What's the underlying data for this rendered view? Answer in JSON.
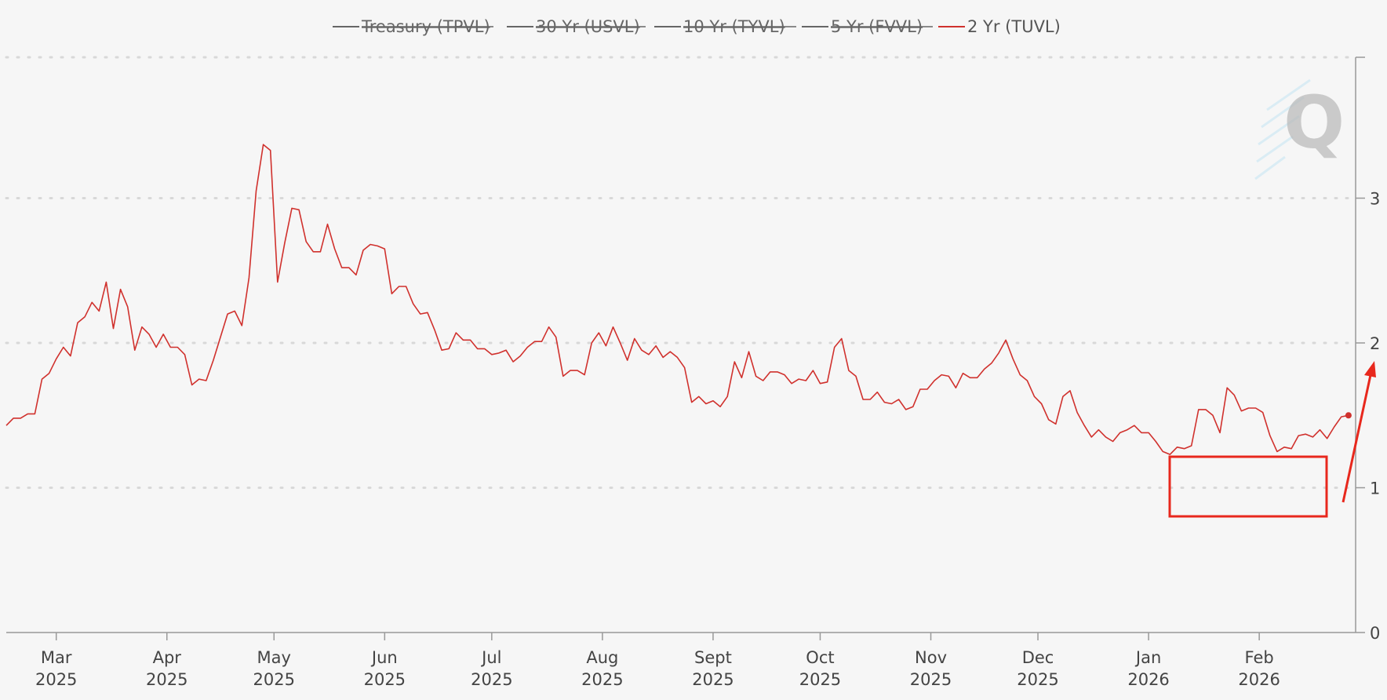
{
  "chart_data": {
    "type": "line",
    "legend": [
      {
        "name": "Treasury (TPVL)",
        "color": "#666666",
        "enabled": false
      },
      {
        "name": "30 Yr (USVL)",
        "color": "#666666",
        "enabled": false
      },
      {
        "name": "10 Yr (TYVL)",
        "color": "#666666",
        "enabled": false
      },
      {
        "name": "5 Yr (FVVL)",
        "color": "#666666",
        "enabled": false
      },
      {
        "name": "2 Yr (TUVL)",
        "color": "#d0312d",
        "enabled": true
      }
    ],
    "legend_placement": "top-center",
    "y_axis": {
      "side": "right",
      "range": [
        0,
        4
      ],
      "ticks": [
        0,
        1,
        2,
        3
      ],
      "grid": "dotted"
    },
    "x_axis": {
      "range": [
        "2025-02-15",
        "2026-02-28"
      ],
      "ticks": [
        {
          "month": "Mar",
          "year": "2025",
          "date": "2025-03-01"
        },
        {
          "month": "Apr",
          "year": "2025",
          "date": "2025-04-01"
        },
        {
          "month": "May",
          "year": "2025",
          "date": "2025-05-01"
        },
        {
          "month": "Jun",
          "year": "2025",
          "date": "2025-06-01"
        },
        {
          "month": "Jul",
          "year": "2025",
          "date": "2025-07-01"
        },
        {
          "month": "Aug",
          "year": "2025",
          "date": "2025-08-01"
        },
        {
          "month": "Sept",
          "year": "2025",
          "date": "2025-09-01"
        },
        {
          "month": "Oct",
          "year": "2025",
          "date": "2025-10-01"
        },
        {
          "month": "Nov",
          "year": "2025",
          "date": "2025-11-01"
        },
        {
          "month": "Dec",
          "year": "2025",
          "date": "2025-12-01"
        },
        {
          "month": "Jan",
          "year": "2026",
          "date": "2026-01-01"
        },
        {
          "month": "Feb",
          "year": "2026",
          "date": "2026-02-01"
        }
      ]
    },
    "series": [
      {
        "name": "2 Yr (TUVL)",
        "color": "#d0312d",
        "points": [
          [
            "2025-02-15",
            1.43
          ],
          [
            "2025-02-17",
            1.48
          ],
          [
            "2025-02-19",
            1.48
          ],
          [
            "2025-02-21",
            1.51
          ],
          [
            "2025-02-23",
            1.51
          ],
          [
            "2025-02-25",
            1.75
          ],
          [
            "2025-02-27",
            1.79
          ],
          [
            "2025-03-01",
            1.89
          ],
          [
            "2025-03-03",
            1.97
          ],
          [
            "2025-03-05",
            1.91
          ],
          [
            "2025-03-07",
            2.14
          ],
          [
            "2025-03-09",
            2.18
          ],
          [
            "2025-03-11",
            2.28
          ],
          [
            "2025-03-13",
            2.22
          ],
          [
            "2025-03-15",
            2.42
          ],
          [
            "2025-03-17",
            2.1
          ],
          [
            "2025-03-19",
            2.37
          ],
          [
            "2025-03-21",
            2.25
          ],
          [
            "2025-03-23",
            1.95
          ],
          [
            "2025-03-25",
            2.11
          ],
          [
            "2025-03-27",
            2.06
          ],
          [
            "2025-03-29",
            1.97
          ],
          [
            "2025-03-31",
            2.06
          ],
          [
            "2025-04-02",
            1.97
          ],
          [
            "2025-04-04",
            1.97
          ],
          [
            "2025-04-06",
            1.92
          ],
          [
            "2025-04-08",
            1.71
          ],
          [
            "2025-04-10",
            1.75
          ],
          [
            "2025-04-12",
            1.74
          ],
          [
            "2025-04-14",
            1.88
          ],
          [
            "2025-04-16",
            2.04
          ],
          [
            "2025-04-18",
            2.2
          ],
          [
            "2025-04-20",
            2.22
          ],
          [
            "2025-04-22",
            2.12
          ],
          [
            "2025-04-24",
            2.45
          ],
          [
            "2025-04-26",
            3.05
          ],
          [
            "2025-04-28",
            3.37
          ],
          [
            "2025-04-30",
            3.33
          ],
          [
            "2025-05-02",
            2.42
          ],
          [
            "2025-05-04",
            2.69
          ],
          [
            "2025-05-06",
            2.93
          ],
          [
            "2025-05-08",
            2.92
          ],
          [
            "2025-05-10",
            2.7
          ],
          [
            "2025-05-12",
            2.63
          ],
          [
            "2025-05-14",
            2.63
          ],
          [
            "2025-05-16",
            2.82
          ],
          [
            "2025-05-18",
            2.65
          ],
          [
            "2025-05-20",
            2.52
          ],
          [
            "2025-05-22",
            2.52
          ],
          [
            "2025-05-24",
            2.47
          ],
          [
            "2025-05-26",
            2.64
          ],
          [
            "2025-05-28",
            2.68
          ],
          [
            "2025-05-30",
            2.67
          ],
          [
            "2025-06-01",
            2.65
          ],
          [
            "2025-06-03",
            2.34
          ],
          [
            "2025-06-05",
            2.39
          ],
          [
            "2025-06-07",
            2.39
          ],
          [
            "2025-06-09",
            2.27
          ],
          [
            "2025-06-11",
            2.2
          ],
          [
            "2025-06-13",
            2.21
          ],
          [
            "2025-06-15",
            2.09
          ],
          [
            "2025-06-17",
            1.95
          ],
          [
            "2025-06-19",
            1.96
          ],
          [
            "2025-06-21",
            2.07
          ],
          [
            "2025-06-23",
            2.02
          ],
          [
            "2025-06-25",
            2.02
          ],
          [
            "2025-06-27",
            1.96
          ],
          [
            "2025-06-29",
            1.96
          ],
          [
            "2025-07-01",
            1.92
          ],
          [
            "2025-07-03",
            1.93
          ],
          [
            "2025-07-05",
            1.95
          ],
          [
            "2025-07-07",
            1.87
          ],
          [
            "2025-07-09",
            1.91
          ],
          [
            "2025-07-11",
            1.97
          ],
          [
            "2025-07-13",
            2.01
          ],
          [
            "2025-07-15",
            2.01
          ],
          [
            "2025-07-17",
            2.11
          ],
          [
            "2025-07-19",
            2.04
          ],
          [
            "2025-07-21",
            1.77
          ],
          [
            "2025-07-23",
            1.81
          ],
          [
            "2025-07-25",
            1.81
          ],
          [
            "2025-07-27",
            1.78
          ],
          [
            "2025-07-29",
            2.0
          ],
          [
            "2025-07-31",
            2.07
          ],
          [
            "2025-08-02",
            1.98
          ],
          [
            "2025-08-04",
            2.11
          ],
          [
            "2025-08-06",
            2.0
          ],
          [
            "2025-08-08",
            1.88
          ],
          [
            "2025-08-10",
            2.03
          ],
          [
            "2025-08-12",
            1.95
          ],
          [
            "2025-08-14",
            1.92
          ],
          [
            "2025-08-16",
            1.98
          ],
          [
            "2025-08-18",
            1.9
          ],
          [
            "2025-08-20",
            1.94
          ],
          [
            "2025-08-22",
            1.9
          ],
          [
            "2025-08-24",
            1.83
          ],
          [
            "2025-08-26",
            1.59
          ],
          [
            "2025-08-28",
            1.63
          ],
          [
            "2025-08-30",
            1.58
          ],
          [
            "2025-09-01",
            1.6
          ],
          [
            "2025-09-03",
            1.56
          ],
          [
            "2025-09-05",
            1.63
          ],
          [
            "2025-09-07",
            1.87
          ],
          [
            "2025-09-09",
            1.76
          ],
          [
            "2025-09-11",
            1.94
          ],
          [
            "2025-09-13",
            1.77
          ],
          [
            "2025-09-15",
            1.74
          ],
          [
            "2025-09-17",
            1.8
          ],
          [
            "2025-09-19",
            1.8
          ],
          [
            "2025-09-21",
            1.78
          ],
          [
            "2025-09-23",
            1.72
          ],
          [
            "2025-09-25",
            1.75
          ],
          [
            "2025-09-27",
            1.74
          ],
          [
            "2025-09-29",
            1.81
          ],
          [
            "2025-10-01",
            1.72
          ],
          [
            "2025-10-03",
            1.73
          ],
          [
            "2025-10-05",
            1.97
          ],
          [
            "2025-10-07",
            2.03
          ],
          [
            "2025-10-09",
            1.81
          ],
          [
            "2025-10-11",
            1.77
          ],
          [
            "2025-10-13",
            1.61
          ],
          [
            "2025-10-15",
            1.61
          ],
          [
            "2025-10-17",
            1.66
          ],
          [
            "2025-10-19",
            1.59
          ],
          [
            "2025-10-21",
            1.58
          ],
          [
            "2025-10-23",
            1.61
          ],
          [
            "2025-10-25",
            1.54
          ],
          [
            "2025-10-27",
            1.56
          ],
          [
            "2025-10-29",
            1.68
          ],
          [
            "2025-10-31",
            1.68
          ],
          [
            "2025-11-02",
            1.74
          ],
          [
            "2025-11-04",
            1.78
          ],
          [
            "2025-11-06",
            1.77
          ],
          [
            "2025-11-08",
            1.69
          ],
          [
            "2025-11-10",
            1.79
          ],
          [
            "2025-11-12",
            1.76
          ],
          [
            "2025-11-14",
            1.76
          ],
          [
            "2025-11-16",
            1.82
          ],
          [
            "2025-11-18",
            1.86
          ],
          [
            "2025-11-20",
            1.93
          ],
          [
            "2025-11-22",
            2.02
          ],
          [
            "2025-11-24",
            1.89
          ],
          [
            "2025-11-26",
            1.78
          ],
          [
            "2025-11-28",
            1.74
          ],
          [
            "2025-11-30",
            1.63
          ],
          [
            "2025-12-02",
            1.58
          ],
          [
            "2025-12-04",
            1.47
          ],
          [
            "2025-12-06",
            1.44
          ],
          [
            "2025-12-08",
            1.63
          ],
          [
            "2025-12-10",
            1.67
          ],
          [
            "2025-12-12",
            1.52
          ],
          [
            "2025-12-14",
            1.43
          ],
          [
            "2025-12-16",
            1.35
          ],
          [
            "2025-12-18",
            1.4
          ],
          [
            "2025-12-20",
            1.35
          ],
          [
            "2025-12-22",
            1.32
          ],
          [
            "2025-12-24",
            1.38
          ],
          [
            "2025-12-26",
            1.4
          ],
          [
            "2025-12-28",
            1.43
          ],
          [
            "2025-12-30",
            1.38
          ],
          [
            "2026-01-01",
            1.38
          ],
          [
            "2026-01-03",
            1.32
          ],
          [
            "2026-01-05",
            1.25
          ],
          [
            "2026-01-07",
            1.23
          ],
          [
            "2026-01-09",
            1.28
          ],
          [
            "2026-01-11",
            1.27
          ],
          [
            "2026-01-13",
            1.29
          ],
          [
            "2026-01-15",
            1.54
          ],
          [
            "2026-01-17",
            1.54
          ],
          [
            "2026-01-19",
            1.5
          ],
          [
            "2026-01-21",
            1.38
          ],
          [
            "2026-01-23",
            1.69
          ],
          [
            "2026-01-25",
            1.64
          ],
          [
            "2026-01-27",
            1.53
          ],
          [
            "2026-01-29",
            1.55
          ],
          [
            "2026-01-31",
            1.55
          ],
          [
            "2026-02-02",
            1.52
          ],
          [
            "2026-02-04",
            1.36
          ],
          [
            "2026-02-06",
            1.25
          ],
          [
            "2026-02-08",
            1.28
          ],
          [
            "2026-02-10",
            1.27
          ],
          [
            "2026-02-12",
            1.36
          ],
          [
            "2026-02-14",
            1.37
          ],
          [
            "2026-02-16",
            1.35
          ],
          [
            "2026-02-18",
            1.4
          ],
          [
            "2026-02-20",
            1.34
          ],
          [
            "2026-02-22",
            1.42
          ],
          [
            "2026-02-24",
            1.49
          ],
          [
            "2026-02-26",
            1.5
          ]
        ]
      }
    ]
  }
}
